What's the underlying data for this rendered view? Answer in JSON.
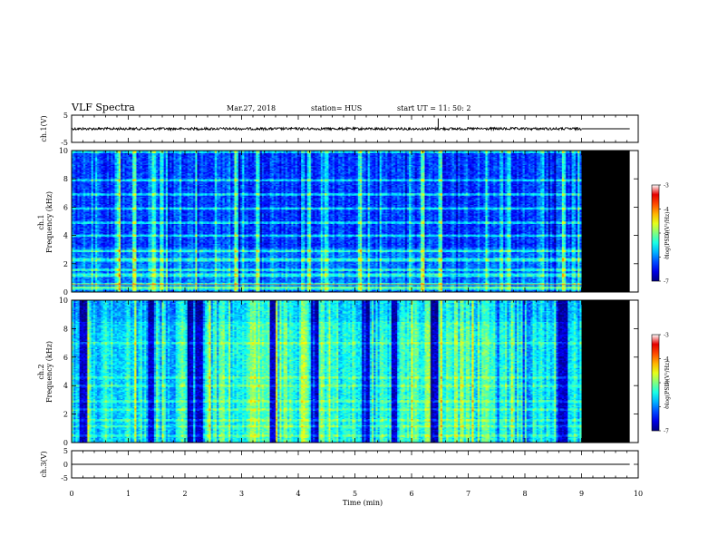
{
  "header": {
    "title": "VLF Spectra",
    "date": "Mar.27, 2018",
    "station": "station= HUS",
    "start": "start  UT =   11: 50: 2"
  },
  "chart_data": [
    {
      "type": "line",
      "panel": "ch1-waveform",
      "ylabel": "ch.1(V)",
      "ylim": [
        -5,
        5
      ],
      "yticks": [
        "5",
        "-5"
      ],
      "xlim": [
        0,
        10
      ],
      "series": [
        {
          "x": [
            0,
            1,
            2,
            3,
            4,
            5,
            6,
            6.47,
            6.5,
            7,
            8,
            9,
            9.1,
            9.85
          ],
          "values": [
            0,
            0,
            0,
            0,
            0,
            0,
            0,
            3.8,
            0,
            0,
            0,
            0,
            0,
            0
          ]
        }
      ]
    },
    {
      "type": "heatmap",
      "panel": "ch1-spectrogram",
      "ylabel": "Frequency (kHz)",
      "channel_label": "ch.1",
      "ylim": [
        0,
        10
      ],
      "yticks": [
        "0",
        "2",
        "4",
        "6",
        "8",
        "10"
      ],
      "xlim": [
        0,
        10
      ],
      "data_end_min": 9.0,
      "colorbar": {
        "label": "log(PSD)(V²/Hz)",
        "range": [
          -7,
          -3
        ],
        "ticks": [
          "-3",
          "-4",
          "-5",
          "-6",
          "-7"
        ]
      },
      "band_frequencies_khz": [
        0.3,
        0.6,
        1.2,
        1.6,
        2.3,
        2.9,
        4.0,
        4.9,
        5.9,
        6.9,
        7.9,
        9.9
      ],
      "bright_times_min": [
        0.8,
        0.85,
        1.1,
        1.45,
        1.6,
        2.2,
        2.9,
        3.3,
        4.2,
        4.5,
        5.1,
        6.2,
        6.5,
        7.35,
        7.7,
        8.7,
        8.95
      ]
    },
    {
      "type": "heatmap",
      "panel": "ch2-spectrogram",
      "ylabel": "Frequency (kHz)",
      "channel_label": "ch.2",
      "ylim": [
        0,
        10
      ],
      "yticks": [
        "0",
        "2",
        "4",
        "6",
        "8",
        "10"
      ],
      "xlim": [
        0,
        10
      ],
      "data_end_min": 9.0,
      "colorbar": {
        "label": "log(PSD)(V²/Hz)",
        "range": [
          -7,
          -3
        ],
        "ticks": [
          "-3",
          "-4",
          "-5",
          "-6",
          "-7"
        ]
      },
      "band_frequencies_khz": [
        0.5,
        1.2,
        1.6,
        2.3,
        2.9,
        4.0,
        4.6,
        7.0
      ],
      "dark_times_min": [
        0.2,
        1.4,
        2.1,
        2.25,
        3.55,
        4.3,
        5.2,
        5.7,
        6.4,
        8.6,
        8.7
      ]
    },
    {
      "type": "line",
      "panel": "ch3-waveform",
      "ylabel": "ch.3(V)",
      "ylim": [
        -5,
        5
      ],
      "yticks": [
        "5",
        "0",
        "-5"
      ],
      "xlim": [
        0,
        10
      ],
      "xlabel": "Time  (min)",
      "xticks": [
        "0",
        "1",
        "2",
        "3",
        "4",
        "5",
        "6",
        "7",
        "8",
        "9",
        "10"
      ],
      "series": [
        {
          "x": [
            0,
            9.85
          ],
          "values": [
            0,
            0
          ]
        }
      ]
    }
  ]
}
